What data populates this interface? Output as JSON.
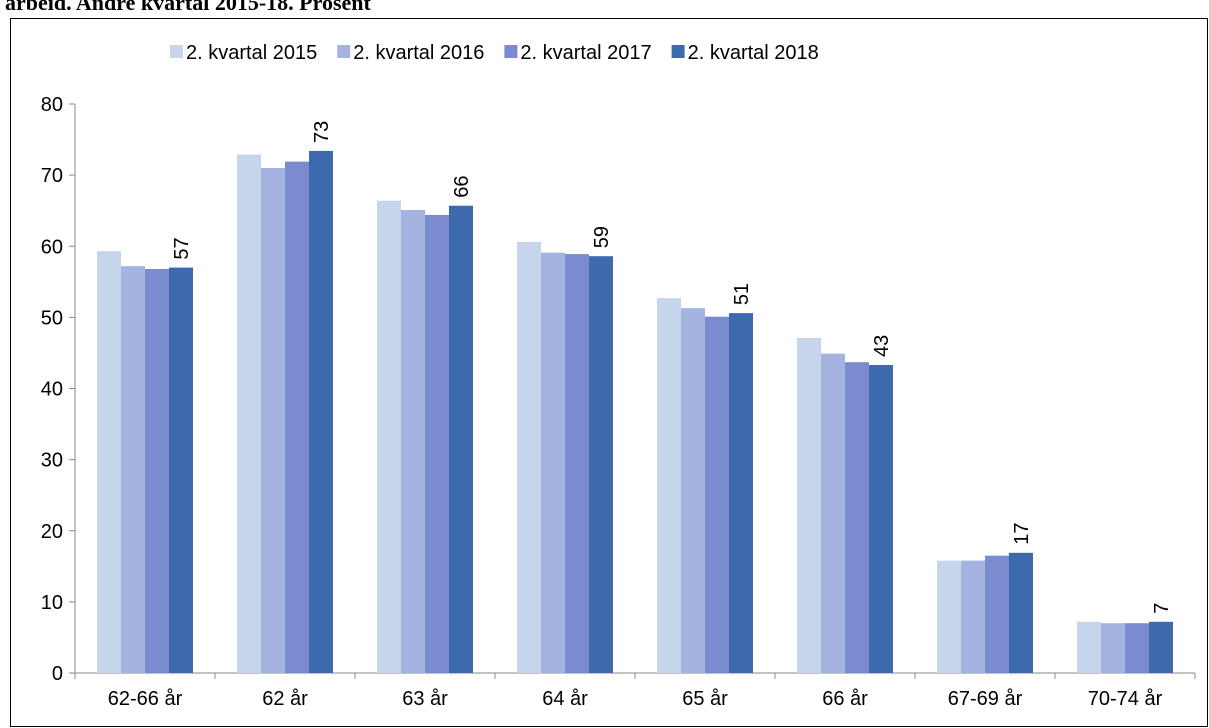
{
  "chart_data": {
    "type": "bar",
    "title": "arbeid. Andre kvartal 2015-18. Prosent",
    "categories": [
      "62-66 år",
      "62 år",
      "63 år",
      "64 år",
      "65 år",
      "66 år",
      "67-69 år",
      "70-74 år"
    ],
    "series": [
      {
        "name": "2. kvartal 2015",
        "color": "#c6d5ec",
        "values": [
          59.3,
          72.9,
          66.4,
          60.6,
          52.7,
          47.1,
          15.8,
          7.2
        ]
      },
      {
        "name": "2. kvartal 2016",
        "color": "#a5b3e0",
        "values": [
          57.2,
          71.0,
          65.1,
          59.1,
          51.3,
          44.9,
          15.8,
          7.0
        ]
      },
      {
        "name": "2. kvartal 2017",
        "color": "#7b8bd0",
        "values": [
          56.8,
          71.9,
          64.4,
          58.9,
          50.1,
          43.7,
          16.5,
          7.0
        ]
      },
      {
        "name": "2. kvartal 2018",
        "color": "#3d6aad",
        "values": [
          57.0,
          73.4,
          65.7,
          58.6,
          50.6,
          43.3,
          16.9,
          7.2
        ],
        "value_labels": [
          "57",
          "73",
          "66",
          "59",
          "51",
          "43",
          "17",
          "7"
        ]
      }
    ],
    "ylim": [
      0,
      80
    ],
    "yticks": [
      0,
      10,
      20,
      30,
      40,
      50,
      60,
      70,
      80
    ],
    "legend": "top"
  }
}
